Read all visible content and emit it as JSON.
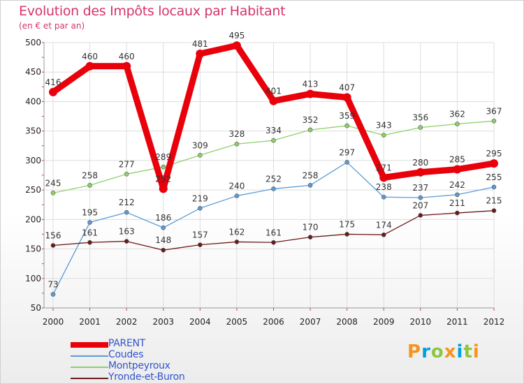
{
  "header": {
    "title": "Evolution des Impôts locaux par Habitant",
    "subtitle": "(en € et par an)"
  },
  "logo": {
    "text": "Proxiti",
    "colors": [
      "#f7941d",
      "#00a0df",
      "#8dc63f",
      "#f7941d",
      "#00a0df",
      "#8dc63f",
      "#f7941d"
    ]
  },
  "chart_data": {
    "type": "line",
    "x": [
      "2000",
      "2001",
      "2002",
      "2003",
      "2004",
      "2005",
      "2006",
      "2007",
      "2008",
      "2009",
      "2010",
      "2011",
      "2012"
    ],
    "ylim": [
      50,
      500
    ],
    "yticks": [
      "50",
      "100",
      "150",
      "200",
      "250",
      "300",
      "350",
      "400",
      "450",
      "500"
    ],
    "grid": true,
    "legend_position": "bottom-left",
    "series": [
      {
        "name": "PARENT",
        "color": "#e8000b",
        "values": [
          416,
          460,
          460,
          252,
          481,
          495,
          401,
          413,
          407,
          271,
          280,
          285,
          295
        ],
        "bold": true
      },
      {
        "name": "Coudes",
        "color": "#5b9bd5",
        "values": [
          73,
          195,
          212,
          186,
          219,
          240,
          252,
          258,
          297,
          238,
          237,
          242,
          255
        ]
      },
      {
        "name": "Montpeyroux",
        "color": "#8ed06a",
        "values": [
          245,
          258,
          277,
          289,
          309,
          328,
          334,
          352,
          359,
          343,
          356,
          362,
          367
        ]
      },
      {
        "name": "Yronde-et-Buron",
        "color": "#6b1a1a",
        "values": [
          156,
          161,
          163,
          148,
          157,
          162,
          161,
          170,
          175,
          174,
          207,
          211,
          215
        ]
      }
    ]
  }
}
